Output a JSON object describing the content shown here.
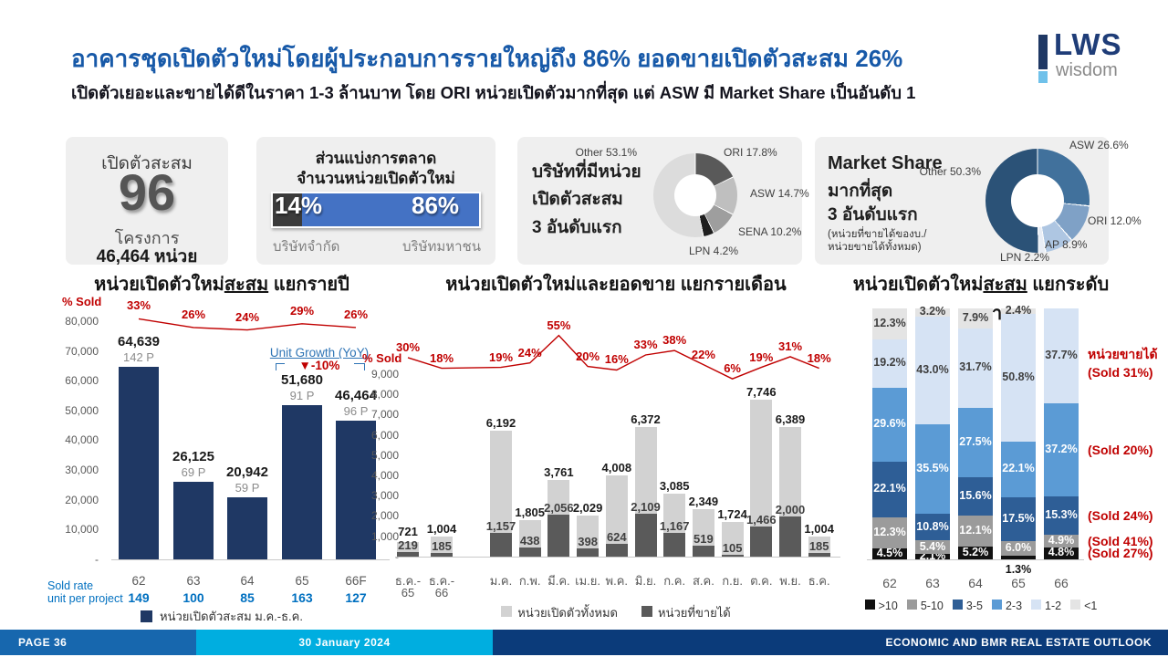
{
  "header": {
    "title": "อาคารชุดเปิดตัวใหม่โดยผู้ประกอบการรายใหญ่ถึง 86% ยอดขายเปิดตัวสะสม 26%",
    "subtitle": "เปิดตัวเยอะและขายได้ดีในราคา 1-3 ล้านบาท โดย ORI หน่วยเปิดตัวมากที่สุด แต่ ASW มี Market Share เป็นอันดับ 1",
    "logo_text": "LWS",
    "logo_sub": "wisdom"
  },
  "cards": {
    "cumulative": {
      "title": "เปิดตัวสะสม",
      "value": "96",
      "unit": "โครงการ",
      "units_total": "46,464 หน่วย"
    },
    "split": {
      "title1": "ส่วนแบ่งการตลาด",
      "title2": "จำนวนหน่วยเปิดตัวใหม่",
      "left_pct": 14,
      "right_pct": 86,
      "left_pct_label": "14%",
      "right_pct_label": "86%",
      "left_label": "บริษัทจำกัด",
      "right_label": "บริษัทมหาชน"
    },
    "launch_top3": {
      "line1": "บริษัทที่มีหน่วย",
      "line2": "เปิดตัวสะสม",
      "line3": "3 อันดับแรก"
    },
    "market_share_top3": {
      "line1": "Market Share",
      "line2": "มากที่สุด",
      "line3": "3 อันดับแรก",
      "note1": "(หน่วยที่ขายได้ของบ./",
      "note2": "หน่วยขายได้ทั้งหมด)"
    }
  },
  "chart_data": [
    {
      "id": "launch-share-donut",
      "type": "pie",
      "title": "บริษัทที่มีหน่วยเปิดตัวสะสม 3 อันดับแรก",
      "slices": [
        {
          "label": "ORI",
          "value": 17.8,
          "label_text": "ORI 17.8%",
          "color": "#595959"
        },
        {
          "label": "ASW",
          "value": 14.7,
          "label_text": "ASW 14.7%",
          "color": "#BFBFBF"
        },
        {
          "label": "SENA",
          "value": 10.2,
          "label_text": "SENA 10.2%",
          "color": "#9E9E9E"
        },
        {
          "label": "LPN",
          "value": 4.2,
          "label_text": "LPN 4.2%",
          "color": "#1F1F1F"
        },
        {
          "label": "Other",
          "value": 53.1,
          "label_text": "Other 53.1%",
          "color": "#DCDCDC"
        }
      ]
    },
    {
      "id": "market-share-donut",
      "type": "pie",
      "title": "Market Share มากที่สุด 3 อันดับแรก",
      "slices": [
        {
          "label": "ASW",
          "value": 26.6,
          "label_text": "ASW 26.6%",
          "color": "#41719C"
        },
        {
          "label": "ORI",
          "value": 12.0,
          "label_text": "ORI 12.0%",
          "color": "#7FA1C6"
        },
        {
          "label": "AP",
          "value": 8.9,
          "label_text": "AP 8.9%",
          "color": "#AEC6E2"
        },
        {
          "label": "LPN",
          "value": 2.2,
          "label_text": "LPN 2.2%",
          "color": "#E9EEF6"
        },
        {
          "label": "Other",
          "value": 50.3,
          "label_text": "Other 50.3%",
          "color": "#2B5277"
        }
      ]
    },
    {
      "id": "yearly",
      "type": "bar",
      "title_pre": "หน่วยเปิดตัวใหม่",
      "title_underlined": "สะสม",
      "title_post": " แยกรายปี",
      "pct_axis_label": "% Sold",
      "y_ticks": [
        "80,000",
        "70,000",
        "60,000",
        "50,000",
        "40,000",
        "30,000",
        "20,000",
        "10,000",
        "-"
      ],
      "ymax": 80000,
      "categories": [
        "62",
        "63",
        "64",
        "65",
        "66F"
      ],
      "values": [
        64639,
        26125,
        20942,
        51680,
        46464
      ],
      "value_labels": [
        "64,639",
        "26,125",
        "20,942",
        "51,680",
        "46,464"
      ],
      "project_labels": [
        "142 P",
        "69 P",
        "59 P",
        "91 P",
        "96 P"
      ],
      "sold_pct": [
        33,
        26,
        24,
        29,
        26
      ],
      "sold_pct_labels": [
        "33%",
        "26%",
        "24%",
        "29%",
        "26%"
      ],
      "growth_label": "Unit Growth (YoY)",
      "growth_value": "▼-10%",
      "sold_rate_label1": "Sold rate",
      "sold_rate_label2": "unit per project",
      "sold_rate": [
        "149",
        "100",
        "85",
        "163",
        "127"
      ],
      "legend": "หน่วยเปิดตัวสะสม ม.ค.-ธ.ค.",
      "bar_color": "#1F3864"
    },
    {
      "id": "monthly",
      "type": "bar",
      "title": "หน่วยเปิดตัวใหม่และยอดขาย แยกรายเดือน",
      "pct_axis_label": "% Sold",
      "y_ticks": [
        "9,000",
        "8,000",
        "7,000",
        "6,000",
        "5,000",
        "4,000",
        "3,000",
        "2,000",
        "1,000",
        "-"
      ],
      "ymax": 9000,
      "categories": [
        "ธ.ค.-|65",
        "ธ.ค.-|66",
        "ม.ค.",
        "ก.พ.",
        "มี.ค.",
        "เม.ย.",
        "พ.ค.",
        "มิ.ย.",
        "ก.ค.",
        "ส.ค.",
        "ก.ย.",
        "ต.ค.",
        "พ.ย.",
        "ธ.ค."
      ],
      "series": [
        {
          "name": "หน่วยเปิดตัวทั้งหมด",
          "color": "#D2D2D2",
          "values": [
            721,
            1004,
            6192,
            1805,
            3761,
            2029,
            4008,
            6372,
            3085,
            2349,
            1724,
            7746,
            6389,
            1004
          ],
          "value_labels": [
            "721",
            "1,004",
            "6,192",
            "1,805",
            "3,761",
            "2,029",
            "4,008",
            "6,372",
            "3,085",
            "2,349",
            "1,724",
            "7,746",
            "6,389",
            "1,004"
          ]
        },
        {
          "name": "หน่วยที่ขายได้",
          "color": "#5A5A5A",
          "values": [
            219,
            185,
            1157,
            438,
            2056,
            398,
            624,
            2109,
            1167,
            519,
            105,
            1466,
            2000,
            185
          ],
          "value_labels": [
            "219",
            "185",
            "1,157",
            "438",
            "2,056",
            "398",
            "624",
            "2,109",
            "1,167",
            "519",
            "105",
            "1,466",
            "2,000",
            "185"
          ]
        }
      ],
      "sold_pct": [
        30,
        18,
        19,
        24,
        55,
        20,
        16,
        33,
        38,
        22,
        6,
        19,
        31,
        18
      ],
      "sold_pct_labels": [
        "30%",
        "18%",
        "19%",
        "24%",
        "55%",
        "20%",
        "16%",
        "33%",
        "38%",
        "22%",
        "6%",
        "19%",
        "31%",
        "18%"
      ]
    },
    {
      "id": "price-level",
      "type": "stacked-bar",
      "title_pre": "หน่วยเปิดตัวใหม่",
      "title_underlined": "สะสม",
      "title_post": " แยกระดับราคา",
      "categories": [
        "62",
        "63",
        "64",
        "65",
        "66"
      ],
      "segments": [
        {
          "name": ">10",
          "color": "#111111",
          "text_color": "#FFFFFF",
          "values": [
            4.5,
            2.1,
            5.2,
            1.3,
            4.8
          ],
          "labels": [
            "4.5%",
            "2.1%",
            "5.2%",
            "1.3%",
            "4.8%"
          ]
        },
        {
          "name": "5-10",
          "color": "#9B9B9B",
          "text_color": "#FFFFFF",
          "values": [
            12.3,
            5.4,
            12.1,
            6.0,
            4.9
          ],
          "labels": [
            "12.3%",
            "5.4%",
            "12.1%",
            "6.0%",
            "4.9%"
          ]
        },
        {
          "name": "3-5",
          "color": "#2E5E96",
          "text_color": "#FFFFFF",
          "values": [
            22.1,
            10.8,
            15.6,
            17.5,
            15.3
          ],
          "labels": [
            "22.1%",
            "10.8%",
            "15.6%",
            "17.5%",
            "15.3%"
          ]
        },
        {
          "name": "2-3",
          "color": "#5B9BD5",
          "text_color": "#FFFFFF",
          "values": [
            29.6,
            35.5,
            27.5,
            22.1,
            37.2
          ],
          "labels": [
            "29.6%",
            "35.5%",
            "27.5%",
            "22.1%",
            "37.2%"
          ]
        },
        {
          "name": "1-2",
          "color": "#D6E3F4",
          "text_color": "#3F3F3F",
          "values": [
            19.2,
            43.0,
            31.7,
            50.8,
            37.7
          ],
          "labels": [
            "19.2%",
            "43.0%",
            "31.7%",
            "50.8%",
            "37.7%"
          ]
        },
        {
          "name": "<1",
          "color": "#E4E4E4",
          "text_color": "#3F3F3F",
          "values": [
            12.3,
            3.2,
            7.9,
            2.4,
            0
          ],
          "labels": [
            "12.3%",
            "3.2%",
            "7.9%",
            "2.4%",
            ""
          ]
        }
      ],
      "sold_side_labels": {
        "title": "หน่วยขายได้",
        "items": [
          {
            "segment": "1-2",
            "text": "(Sold 31%)"
          },
          {
            "segment": "2-3",
            "text": "(Sold 20%)"
          },
          {
            "segment": "3-5",
            "text": "(Sold 24%)"
          },
          {
            "segment": "5-10",
            "text": "(Sold 41%)"
          },
          {
            "segment": ">10",
            "text": "(Sold 27%)"
          }
        ]
      }
    }
  ],
  "footer": {
    "page": "PAGE 36",
    "date": "30 January 2024",
    "right": "ECONOMIC AND BMR REAL ESTATE OUTLOOK"
  }
}
